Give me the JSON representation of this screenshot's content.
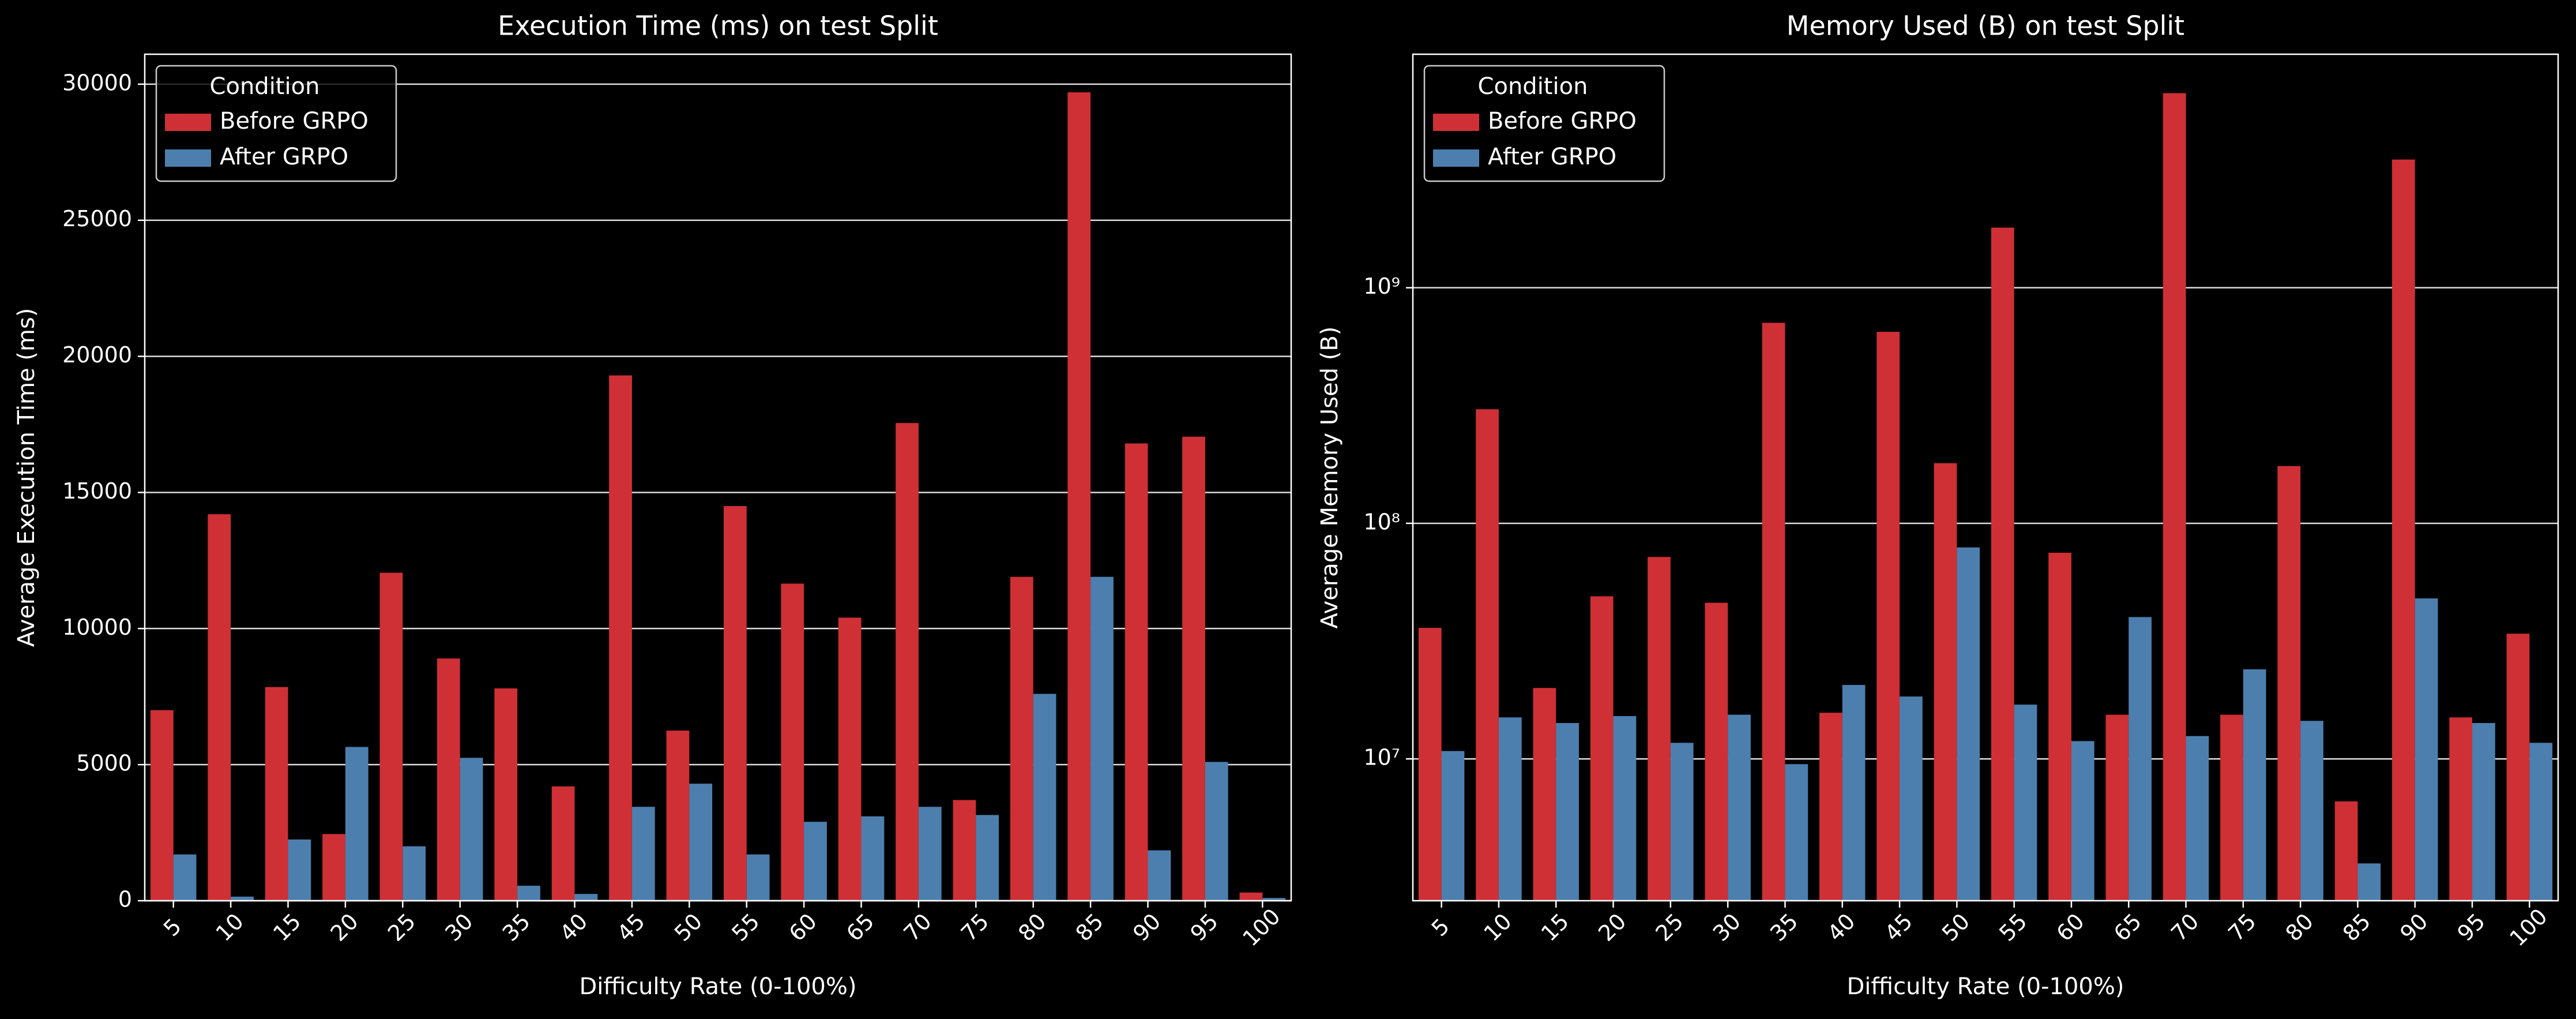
{
  "chart_data": [
    {
      "type": "bar",
      "title": "Execution Time (ms) on test Split",
      "x_label": "Difficulty Rate (0-100%)",
      "y_label": "Average Execution Time (ms)",
      "categories": [
        "5",
        "10",
        "15",
        "20",
        "25",
        "30",
        "35",
        "40",
        "45",
        "50",
        "55",
        "60",
        "65",
        "70",
        "75",
        "80",
        "85",
        "90",
        "95",
        "100"
      ],
      "series": [
        {
          "name": "Before GRPO",
          "color": "#ce3035",
          "values": [
            7000,
            14200,
            7850,
            2450,
            12050,
            8900,
            7800,
            4200,
            19300,
            6250,
            14500,
            11650,
            10400,
            17550,
            3700,
            11900,
            29700,
            16800,
            17050,
            300
          ]
        },
        {
          "name": "After GRPO",
          "color": "#4c7fae",
          "values": [
            1700,
            150,
            2250,
            5650,
            2000,
            5250,
            550,
            250,
            3450,
            4300,
            1700,
            2900,
            3100,
            3450,
            3150,
            7600,
            11900,
            1850,
            5100,
            100
          ]
        }
      ],
      "ylim": [
        0,
        31100
      ],
      "yticks": [
        0,
        5000,
        10000,
        15000,
        20000,
        25000,
        30000
      ],
      "log_scale": false,
      "grid": true,
      "legend_title": "Condition",
      "legend": "upper left"
    },
    {
      "type": "bar",
      "title": "Memory Used (B) on test Split",
      "x_label": "Difficulty Rate (0-100%)",
      "y_label": "Average Memory Used (B)",
      "categories": [
        "5",
        "10",
        "15",
        "20",
        "25",
        "30",
        "35",
        "40",
        "45",
        "50",
        "55",
        "60",
        "65",
        "70",
        "75",
        "80",
        "85",
        "90",
        "95",
        "100"
      ],
      "series": [
        {
          "name": "Before GRPO",
          "color": "#ce3035",
          "values": [
            36000000,
            305000000,
            20000000,
            49000000,
            72000000,
            46000000,
            710000000,
            15700000,
            650000000,
            180000000,
            1800000000,
            75000000,
            15400000,
            6700000000,
            15400000,
            175000000,
            6600000,
            3500000000,
            15000000,
            34000000
          ]
        },
        {
          "name": "After GRPO",
          "color": "#4c7fae",
          "values": [
            10800000,
            15000000,
            14200000,
            15200000,
            11700000,
            15400000,
            9500000,
            20600000,
            18400000,
            79000000,
            17000000,
            11900000,
            40000000,
            12500000,
            24000000,
            14500000,
            3600000,
            48000000,
            14200000,
            11700000
          ]
        }
      ],
      "ylim": [
        2500000,
        9800000000
      ],
      "yticks": [
        {
          "value": 10000000,
          "label": "10⁷"
        },
        {
          "value": 100000000,
          "label": "10⁸"
        },
        {
          "value": 1000000000,
          "label": "10⁹"
        }
      ],
      "log_scale": true,
      "grid": true,
      "legend_title": "Condition",
      "legend": "upper left"
    }
  ]
}
